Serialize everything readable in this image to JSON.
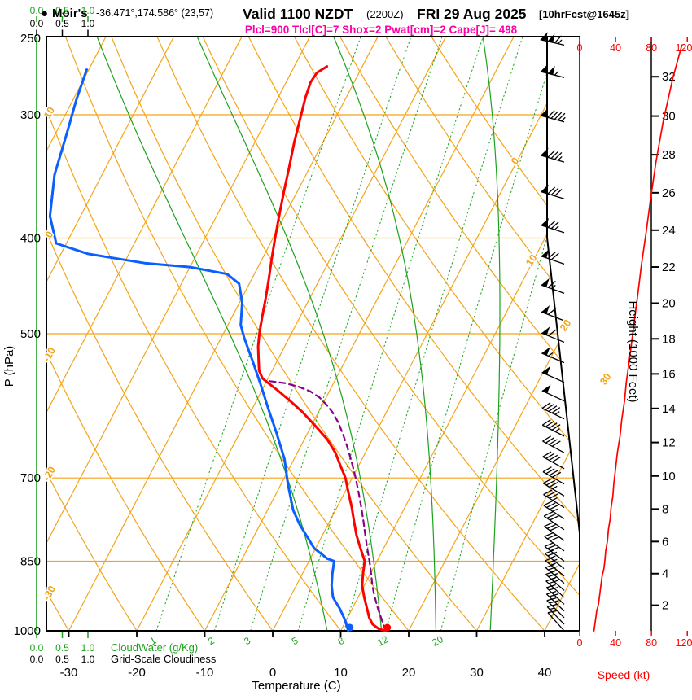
{
  "header": {
    "bullet": "●",
    "station": "Moir's",
    "coords": "-36.471°,174.586° (23,57)",
    "valid_time": "Valid 1100 NZDT",
    "valid_utc": "(2200Z)",
    "valid_date": "FRI 29 Aug 2025",
    "forecast_info": "[10hrFcst@1645z]",
    "indices_line": "Plcl=900 Tlcl[C]=7 Shox=2 Pwat[cm]=2 Cape[J]= 498"
  },
  "axes": {
    "pressure_title": "P (hPa)",
    "temperature_title": "Temperature (C)",
    "height_title": "Height (1000 Feet)",
    "speed_title": "Speed (kt)",
    "cloudwater_title": "CloudWater (g/Kg)",
    "cloudiness_title": "Grid-Scale Cloudiness"
  },
  "colors": {
    "grid_orange": "#f4a418",
    "line_green": "#1ca21c",
    "temperature_red": "#ff0000",
    "dewpoint_blue": "#0b5fff",
    "parcel_purple": "#8b008b",
    "header_magenta": "#ff00aa",
    "speed_red": "#ff0000",
    "barb_black": "#000000"
  },
  "chart_data": {
    "type": "skewt-logp-sounding",
    "pressure_ticks_hpa": [
      250,
      300,
      400,
      500,
      700,
      850,
      1000
    ],
    "pressure_grid_lines_hpa": [
      300,
      400,
      500,
      700,
      850
    ],
    "temp_ticks_c": [
      -30,
      -20,
      -10,
      0,
      10,
      20,
      30,
      40
    ],
    "height_ticks_kft": [
      2,
      4,
      6,
      8,
      10,
      12,
      14,
      16,
      18,
      20,
      22,
      24,
      26,
      28,
      30,
      32
    ],
    "speed_ticks_kt": [
      0,
      40,
      80,
      120
    ],
    "cloud_scale_ticks": [
      "0.0",
      "0.5",
      "1.0"
    ],
    "cloudwater_constant_gkg": 0,
    "isotherm_step_c": 10,
    "isotherm_labels_c": [
      0,
      10,
      20,
      30
    ],
    "dry_adiabat_labels_c": [
      10,
      0,
      -10,
      -20,
      -30
    ],
    "mixing_ratio_lines_gkg": [
      1,
      2,
      3,
      5,
      8,
      12,
      20
    ],
    "moist_adiabat_lines_c": [
      8,
      16,
      24,
      32
    ],
    "indices": {
      "plcl_hpa": 900,
      "tlcl_c": 7,
      "showalter": 2,
      "pwat_cm": 2,
      "cape_j_per_kg": 498
    },
    "surface": {
      "pressure_hpa": 1000,
      "temp_c": 16.6,
      "dewpoint_c": 11.1
    },
    "temperature_profile": {
      "pressure_hpa": [
        1000,
        995,
        985,
        970,
        950,
        925,
        900,
        875,
        850,
        825,
        800,
        775,
        750,
        725,
        700,
        680,
        660,
        640,
        620,
        600,
        585,
        570,
        560,
        555,
        545,
        530,
        515,
        500,
        480,
        460,
        440,
        420,
        400,
        380,
        360,
        340,
        320,
        300,
        288,
        278,
        272,
        268
      ],
      "temp_c": [
        16.6,
        15.4,
        14.2,
        13.2,
        12.2,
        10.9,
        9.7,
        8.9,
        8.2,
        6.6,
        5.0,
        3.6,
        2.2,
        0.6,
        -1.0,
        -2.7,
        -4.4,
        -6.6,
        -9.4,
        -12.4,
        -15.0,
        -17.8,
        -19.8,
        -20.8,
        -21.9,
        -22.9,
        -23.9,
        -24.7,
        -25.6,
        -26.5,
        -27.5,
        -28.6,
        -29.7,
        -30.8,
        -31.9,
        -33.0,
        -34.2,
        -35.3,
        -36.0,
        -36.4,
        -36.2,
        -35.2
      ]
    },
    "dewpoint_profile": {
      "pressure_hpa": [
        1000,
        990,
        975,
        950,
        925,
        900,
        875,
        850,
        845,
        825,
        800,
        780,
        755,
        710,
        670,
        630,
        595,
        560,
        530,
        505,
        490,
        465,
        445,
        435,
        428,
        424,
        415,
        405,
        380,
        345,
        310,
        290,
        270
      ],
      "dewpoint_c": [
        11.1,
        10.6,
        9.8,
        8.2,
        6.3,
        5.2,
        4.4,
        3.7,
        2.5,
        -0.2,
        -2.4,
        -4.2,
        -6.2,
        -9.0,
        -11.4,
        -14.6,
        -17.7,
        -20.9,
        -23.9,
        -26.6,
        -28.1,
        -29.6,
        -31.5,
        -34.0,
        -40.0,
        -47.0,
        -56.0,
        -61.5,
        -64.5,
        -67.0,
        -68.5,
        -69.5,
        -70.3
      ]
    },
    "parcel_profile": {
      "pressure_hpa": [
        1000,
        950,
        920,
        900,
        875,
        850,
        825,
        800,
        775,
        750,
        725,
        700,
        680,
        660,
        645,
        630,
        615,
        600,
        590,
        580,
        572,
        566,
        561,
        558
      ],
      "temp_c": [
        16.6,
        13.8,
        12.2,
        11.2,
        10.1,
        8.9,
        7.6,
        6.3,
        5.0,
        3.6,
        2.1,
        0.5,
        -0.9,
        -2.4,
        -3.6,
        -4.9,
        -6.3,
        -8.0,
        -9.4,
        -11.0,
        -12.8,
        -14.8,
        -17.2,
        -20.0
      ]
    },
    "wind_profile": {
      "pressure_hpa": [
        1000,
        985,
        970,
        955,
        940,
        925,
        910,
        895,
        880,
        865,
        850,
        830,
        810,
        790,
        770,
        750,
        730,
        710,
        685,
        660,
        635,
        610,
        585,
        560,
        535,
        510,
        485,
        455,
        425,
        395,
        365,
        335,
        305,
        275,
        255
      ],
      "direction_deg": [
        318,
        316,
        315,
        314,
        313,
        312,
        311,
        310,
        309,
        308,
        307,
        306,
        305,
        304,
        303,
        302,
        301,
        300,
        299,
        298,
        297,
        296,
        295,
        294,
        293,
        292,
        291,
        290,
        289,
        288,
        287,
        286,
        285,
        284,
        283
      ],
      "speed_kt": [
        16,
        17,
        18,
        19,
        21,
        22,
        23,
        24,
        25,
        27,
        28,
        29,
        31,
        32,
        34,
        35,
        37,
        38,
        40,
        42,
        45,
        47,
        50,
        52,
        55,
        58,
        61,
        65,
        69,
        74,
        79,
        85,
        93,
        104,
        114
      ]
    }
  }
}
